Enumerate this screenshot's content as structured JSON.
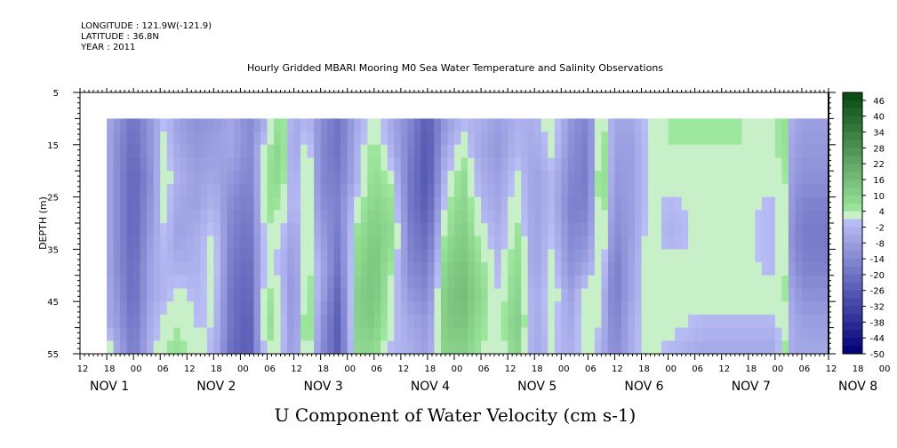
{
  "header": {
    "longitude": "LONGITUDE : 121.9W(-121.9)",
    "latitude": "LATITUDE : 36.8N",
    "year": "YEAR : 2011"
  },
  "chart_data": {
    "type": "heatmap",
    "title": "Hourly Gridded MBARI Mooring M0 Sea Water Temperature and Salinity Observations",
    "xlabel": "U Component of Water Velocity (cm s-1)",
    "ylabel": "DEPTH (m)",
    "ylim": [
      5,
      55
    ],
    "y_inverted": true,
    "y_ticks": [
      5,
      15,
      25,
      35,
      45,
      55
    ],
    "x_hour_ticks": [
      "12",
      "18",
      "00",
      "06",
      "12",
      "18",
      "00",
      "06",
      "12",
      "18",
      "00",
      "06",
      "12",
      "18",
      "00",
      "06",
      "12",
      "18",
      "00",
      "06",
      "12",
      "18",
      "00",
      "06",
      "12",
      "18",
      "00",
      "06",
      "12",
      "18",
      "00",
      "06",
      "12",
      "18",
      "00",
      "06",
      "12"
    ],
    "x_date_labels": [
      "NOV 1",
      "NOV 2",
      "NOV 3",
      "NOV 4",
      "NOV 5",
      "NOV 6",
      "NOV 7",
      "NOV 8"
    ],
    "colorbar_labels": [
      "46",
      "40",
      "34",
      "28",
      "22",
      "16",
      "10",
      "4",
      "-2",
      "-8",
      "-14",
      "-20",
      "-26",
      "-32",
      "-38",
      "-44",
      "-50"
    ],
    "data_depth_range": [
      10,
      55
    ],
    "data_time_start_hours": 6,
    "x_range_hours": [
      0,
      168
    ],
    "column_values_by_time": [
      {
        "t": 6,
        "u": [
          -5,
          -5,
          -5,
          -5,
          -5,
          -5,
          -5,
          -5,
          10
        ]
      },
      {
        "t": 8,
        "u": [
          -10,
          -12,
          -12,
          -12,
          -12,
          -12,
          -10,
          -8,
          -4
        ]
      },
      {
        "t": 12,
        "u": [
          -20,
          -22,
          -24,
          -24,
          -24,
          -22,
          -22,
          -20,
          -18
        ]
      },
      {
        "t": 16,
        "u": [
          -10,
          -10,
          -12,
          -10,
          -8,
          -6,
          -6,
          -4,
          -2
        ]
      },
      {
        "t": 19,
        "u": [
          0,
          2,
          4,
          2,
          0,
          -2,
          -2,
          2,
          4
        ]
      },
      {
        "t": 22,
        "u": [
          -8,
          -6,
          -4,
          -6,
          -8,
          -4,
          2,
          4,
          6
        ]
      },
      {
        "t": 26,
        "u": [
          -12,
          -10,
          -8,
          -8,
          -4,
          -4,
          -2,
          0,
          2
        ]
      },
      {
        "t": 30,
        "u": [
          -10,
          -8,
          -6,
          -2,
          2,
          4,
          2,
          0,
          -2
        ]
      },
      {
        "t": 34,
        "u": [
          -6,
          -6,
          -10,
          -14,
          -16,
          -18,
          -20,
          -20,
          -22
        ]
      },
      {
        "t": 38,
        "u": [
          -14,
          -14,
          -16,
          -18,
          -20,
          -22,
          -24,
          -26,
          -26
        ]
      },
      {
        "t": 42,
        "u": [
          -4,
          4,
          6,
          6,
          4,
          4,
          6,
          8,
          4
        ]
      },
      {
        "t": 45,
        "u": [
          8,
          10,
          8,
          4,
          0,
          -2,
          0,
          2,
          0
        ]
      },
      {
        "t": 48,
        "u": [
          -6,
          -8,
          -6,
          -4,
          -8,
          -10,
          -12,
          -12,
          -10
        ]
      },
      {
        "t": 51,
        "u": [
          -2,
          4,
          6,
          6,
          4,
          6,
          8,
          10,
          8
        ]
      },
      {
        "t": 54,
        "u": [
          -12,
          -14,
          -14,
          -12,
          -8,
          -4,
          -6,
          -10,
          -12
        ]
      },
      {
        "t": 58,
        "u": [
          -20,
          -20,
          -18,
          -16,
          -18,
          -20,
          -24,
          -26,
          -26
        ]
      },
      {
        "t": 62,
        "u": [
          -6,
          -4,
          -4,
          2,
          6,
          8,
          10,
          10,
          8
        ]
      },
      {
        "t": 66,
        "u": [
          4,
          6,
          8,
          10,
          12,
          14,
          14,
          12,
          8
        ]
      },
      {
        "t": 70,
        "u": [
          -6,
          -4,
          2,
          6,
          8,
          4,
          2,
          0,
          -2
        ]
      },
      {
        "t": 74,
        "u": [
          -14,
          -16,
          -18,
          -18,
          -16,
          -14,
          -10,
          -6,
          -4
        ]
      },
      {
        "t": 78,
        "u": [
          -26,
          -28,
          -28,
          -26,
          -22,
          -18,
          -14,
          -10,
          -8
        ]
      },
      {
        "t": 82,
        "u": [
          -10,
          -6,
          -2,
          2,
          6,
          10,
          12,
          12,
          10
        ]
      },
      {
        "t": 86,
        "u": [
          -2,
          2,
          8,
          10,
          12,
          14,
          16,
          14,
          10
        ]
      },
      {
        "t": 90,
        "u": [
          -4,
          -6,
          -4,
          -2,
          2,
          6,
          8,
          6,
          4
        ]
      },
      {
        "t": 94,
        "u": [
          -8,
          -10,
          -8,
          -6,
          -4,
          -2,
          0,
          2,
          0
        ]
      },
      {
        "t": 98,
        "u": [
          -4,
          -2,
          2,
          4,
          6,
          8,
          10,
          12,
          10
        ]
      },
      {
        "t": 102,
        "u": [
          -4,
          -6,
          -8,
          -8,
          -8,
          -8,
          -6,
          -6,
          -6
        ]
      },
      {
        "t": 106,
        "u": [
          4,
          2,
          -2,
          -2,
          0,
          2,
          4,
          2,
          0
        ]
      },
      {
        "t": 110,
        "u": [
          -10,
          -12,
          -14,
          -16,
          -14,
          -12,
          -8,
          -6,
          -4
        ]
      },
      {
        "t": 114,
        "u": [
          -16,
          -18,
          -18,
          -16,
          -12,
          -6,
          4,
          6,
          4
        ]
      },
      {
        "t": 117,
        "u": [
          6,
          10,
          12,
          10,
          8,
          4,
          0,
          -2,
          -4
        ]
      },
      {
        "t": 120,
        "u": [
          -6,
          -8,
          -10,
          -12,
          -14,
          -18,
          -18,
          -16,
          -14
        ]
      },
      {
        "t": 124,
        "u": [
          -6,
          -8,
          -8,
          -8,
          -8,
          -6,
          -6,
          -4,
          -4
        ]
      },
      {
        "t": 128,
        "u": [
          2,
          2,
          2,
          2,
          4,
          4,
          4,
          4,
          4
        ]
      },
      {
        "t": 132,
        "u": [
          4,
          4,
          2,
          -2,
          -4,
          2,
          2,
          2,
          -2
        ]
      },
      {
        "t": 140,
        "u": [
          4,
          4,
          2,
          2,
          2,
          2,
          2,
          -2,
          -6
        ]
      },
      {
        "t": 148,
        "u": [
          4,
          4,
          2,
          2,
          2,
          2,
          2,
          -2,
          -6
        ]
      },
      {
        "t": 156,
        "u": [
          2,
          2,
          2,
          -2,
          -2,
          -2,
          2,
          -2,
          -6
        ]
      },
      {
        "t": 158,
        "u": [
          8,
          8,
          6,
          4,
          4,
          6,
          6,
          4,
          6
        ]
      },
      {
        "t": 160,
        "u": [
          -6,
          -8,
          -10,
          -12,
          -14,
          -12,
          -8,
          -6,
          -6
        ]
      },
      {
        "t": 163,
        "u": [
          -8,
          -10,
          -12,
          -16,
          -18,
          -16,
          -12,
          -8,
          -6
        ]
      }
    ]
  }
}
